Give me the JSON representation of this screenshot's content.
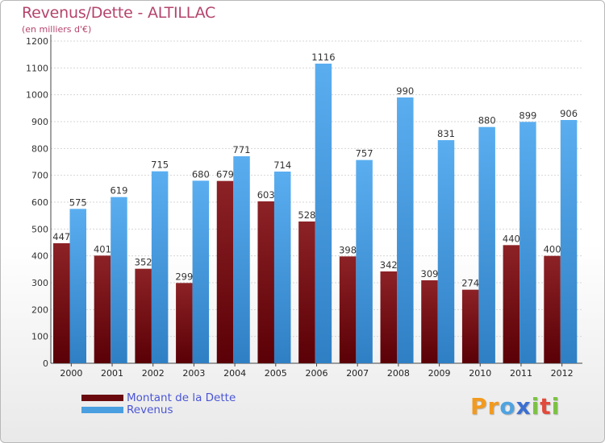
{
  "header": {
    "title": "Revenus/Dette - ALTILLAC",
    "subtitle": "(en milliers d'€)"
  },
  "colors": {
    "dette": "#7a1016",
    "revenus": "#4a9fe0",
    "title": "#b5446d",
    "legend_text": "#4a55d6"
  },
  "legend": {
    "items": [
      {
        "label": "Montant de la Dette",
        "color": "#6a0a0e"
      },
      {
        "label": "Revenus",
        "color": "#4a9fe0"
      }
    ]
  },
  "logo": {
    "letters": [
      "P",
      "r",
      "o",
      "x",
      "i",
      "t",
      "i"
    ],
    "colors": [
      "#f29a1f",
      "#f29a1f",
      "#4fa3e0",
      "#3b6fd1",
      "#7cc242",
      "#e24a3b",
      "#7cc242"
    ]
  },
  "chart_data": {
    "type": "bar",
    "title": "Revenus/Dette - ALTILLAC",
    "ylabel": "(en milliers d'€)",
    "categories": [
      "2000",
      "2001",
      "2002",
      "2003",
      "2004",
      "2005",
      "2006",
      "2007",
      "2008",
      "2009",
      "2010",
      "2011",
      "2012"
    ],
    "series": [
      {
        "name": "Montant de la Dette",
        "values": [
          447,
          401,
          352,
          299,
          679,
          603,
          528,
          398,
          342,
          309,
          274,
          440,
          400
        ]
      },
      {
        "name": "Revenus",
        "values": [
          575,
          619,
          715,
          680,
          771,
          714,
          1116,
          757,
          990,
          831,
          880,
          899,
          906
        ]
      }
    ],
    "ylim": [
      0,
      1200
    ],
    "yticks": [
      0,
      100,
      200,
      300,
      400,
      500,
      600,
      700,
      800,
      900,
      1000,
      1100,
      1200
    ],
    "grid": true,
    "legend_position": "bottom-left"
  }
}
